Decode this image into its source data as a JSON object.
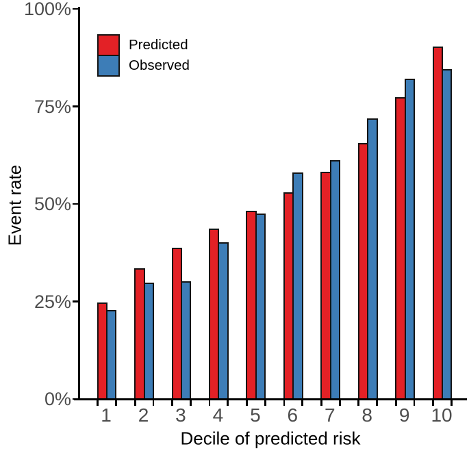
{
  "figure": {
    "ylabel": "Event rate",
    "xlabel": "Decile of predicted risk"
  },
  "legend": {
    "items": [
      {
        "label": "Predicted",
        "color": "#e32126"
      },
      {
        "label": "Observed",
        "color": "#3d7db7"
      }
    ]
  },
  "chart_data": {
    "type": "bar",
    "title": "",
    "categories": [
      "1",
      "2",
      "3",
      "4",
      "5",
      "6",
      "7",
      "8",
      "9",
      "10"
    ],
    "series": [
      {
        "name": "Predicted",
        "color": "#e32126",
        "values": [
          24.7,
          33.5,
          38.8,
          43.6,
          48.2,
          53.0,
          58.3,
          65.7,
          77.3,
          90.3
        ]
      },
      {
        "name": "Observed",
        "color": "#3d7db7",
        "values": [
          22.8,
          29.9,
          30.1,
          40.1,
          47.5,
          58.1,
          61.3,
          72.0,
          82.1,
          84.6
        ]
      }
    ],
    "xlabel": "Decile of predicted risk",
    "ylabel": "Event rate",
    "ylim": [
      0,
      100
    ],
    "yticks": [
      0,
      25,
      50,
      75,
      100
    ],
    "ytick_labels": [
      "0%",
      "25%",
      "50%",
      "75%",
      "100%"
    ],
    "grid": false,
    "legend_position": "top-left-inside",
    "bar_border_color": "#141414",
    "axis_color": "#000000",
    "tick_label_color": "#4d4d4d"
  }
}
